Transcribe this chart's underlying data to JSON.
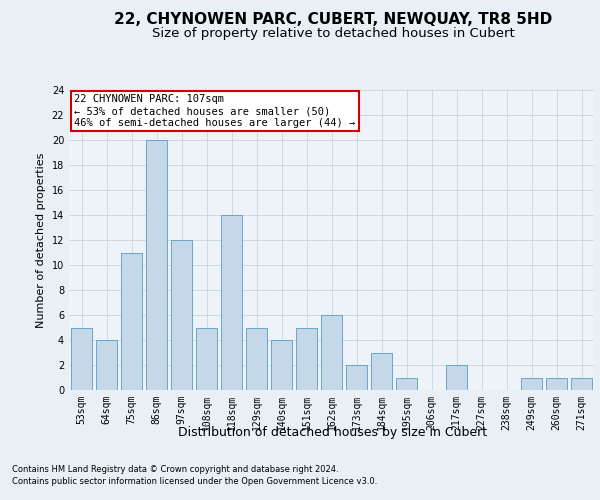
{
  "title1": "22, CHYNOWEN PARC, CUBERT, NEWQUAY, TR8 5HD",
  "title2": "Size of property relative to detached houses in Cubert",
  "xlabel": "Distribution of detached houses by size in Cubert",
  "ylabel": "Number of detached properties",
  "categories": [
    "53sqm",
    "64sqm",
    "75sqm",
    "86sqm",
    "97sqm",
    "108sqm",
    "118sqm",
    "129sqm",
    "140sqm",
    "151sqm",
    "162sqm",
    "173sqm",
    "184sqm",
    "195sqm",
    "206sqm",
    "217sqm",
    "227sqm",
    "238sqm",
    "249sqm",
    "260sqm",
    "271sqm"
  ],
  "values": [
    5,
    4,
    11,
    20,
    12,
    5,
    14,
    5,
    4,
    5,
    6,
    2,
    3,
    1,
    0,
    2,
    0,
    0,
    1,
    1,
    1
  ],
  "bar_color": "#c5d8ea",
  "bar_edge_color": "#5a9cc5",
  "annotation_text": "22 CHYNOWEN PARC: 107sqm\n← 53% of detached houses are smaller (50)\n46% of semi-detached houses are larger (44) →",
  "annotation_box_color": "white",
  "annotation_box_edge_color": "#cc0000",
  "ylim": [
    0,
    24
  ],
  "yticks": [
    0,
    2,
    4,
    6,
    8,
    10,
    12,
    14,
    16,
    18,
    20,
    22,
    24
  ],
  "footer1": "Contains HM Land Registry data © Crown copyright and database right 2024.",
  "footer2": "Contains public sector information licensed under the Open Government Licence v3.0.",
  "background_color": "#e8eff5",
  "plot_background_color": "#edf3f8",
  "title1_fontsize": 11,
  "title2_fontsize": 9.5,
  "tick_fontsize": 7,
  "ylabel_fontsize": 8,
  "xlabel_fontsize": 9,
  "footer_fontsize": 6,
  "annotation_fontsize": 7.5
}
